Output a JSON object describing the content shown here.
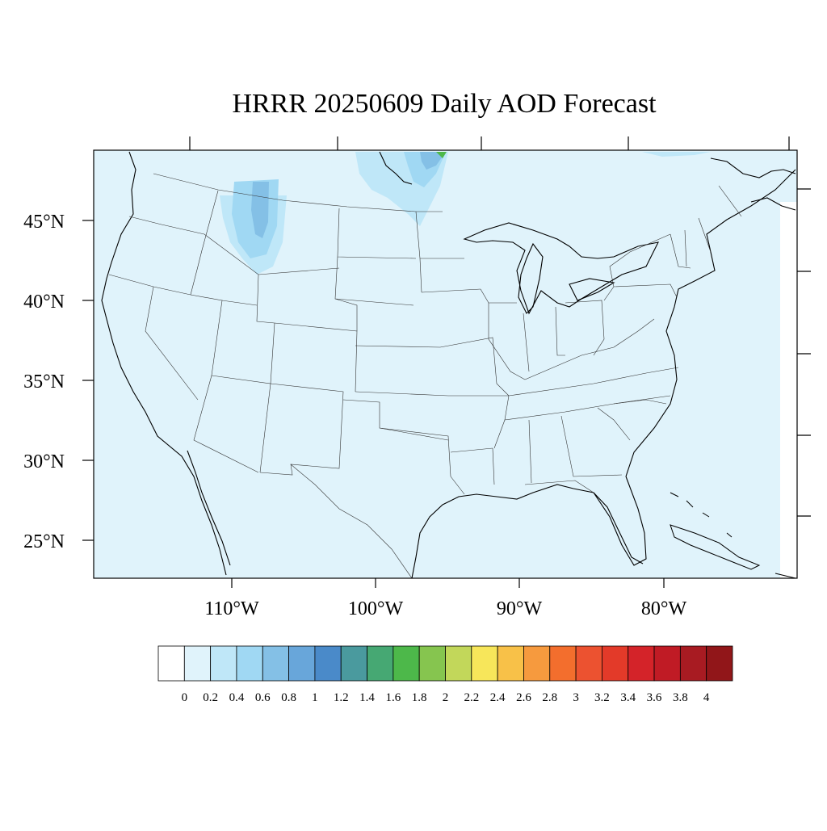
{
  "title": "HRRR 20250609 Daily AOD Forecast",
  "map": {
    "lat_labels": [
      "45°N",
      "40°N",
      "35°N",
      "30°N",
      "25°N"
    ],
    "lon_labels": [
      "110°W",
      "100°W",
      "90°W",
      "80°W"
    ],
    "background_color": "#e0f3fb",
    "coastline_color": "#000000"
  },
  "colorbar": {
    "labels": [
      "0",
      "0.2",
      "0.4",
      "0.6",
      "0.8",
      "1",
      "1.2",
      "1.4",
      "1.6",
      "1.8",
      "2",
      "2.2",
      "2.4",
      "2.6",
      "2.8",
      "3",
      "3.2",
      "3.4",
      "3.6",
      "3.8",
      "4"
    ],
    "colors": [
      "#ffffff",
      "#e0f3fb",
      "#bfe7f8",
      "#a0d8f3",
      "#84c0e6",
      "#68a6da",
      "#4a8ac9",
      "#4a9a9e",
      "#46a873",
      "#4db84a",
      "#86c54f",
      "#c2d75a",
      "#f7e65a",
      "#f8c148",
      "#f69a3e",
      "#f36e2d",
      "#ec5230",
      "#e33a29",
      "#d42329",
      "#c01b25",
      "#a81b22",
      "#911619"
    ]
  },
  "chart_data": {
    "type": "heatmap",
    "title": "HRRR 20250609 Daily AOD Forecast",
    "quantity_range": [
      0,
      4
    ],
    "colorbar_ticks": [
      0,
      0.2,
      0.4,
      0.6,
      0.8,
      1,
      1.2,
      1.4,
      1.6,
      1.8,
      2,
      2.2,
      2.4,
      2.6,
      2.8,
      3,
      3.2,
      3.4,
      3.6,
      3.8,
      4
    ],
    "lat_ticks": [
      45,
      40,
      35,
      30,
      25
    ],
    "lon_ticks": [
      -110,
      -100,
      -90,
      -80
    ],
    "features": [
      {
        "region": "western Montana",
        "aod_range": [
          0.2,
          0.8
        ]
      },
      {
        "region": "northern Minnesota",
        "aod_range": [
          0.2,
          1.8
        ]
      },
      {
        "region": "background",
        "aod_range": [
          0,
          0.2
        ]
      }
    ]
  }
}
